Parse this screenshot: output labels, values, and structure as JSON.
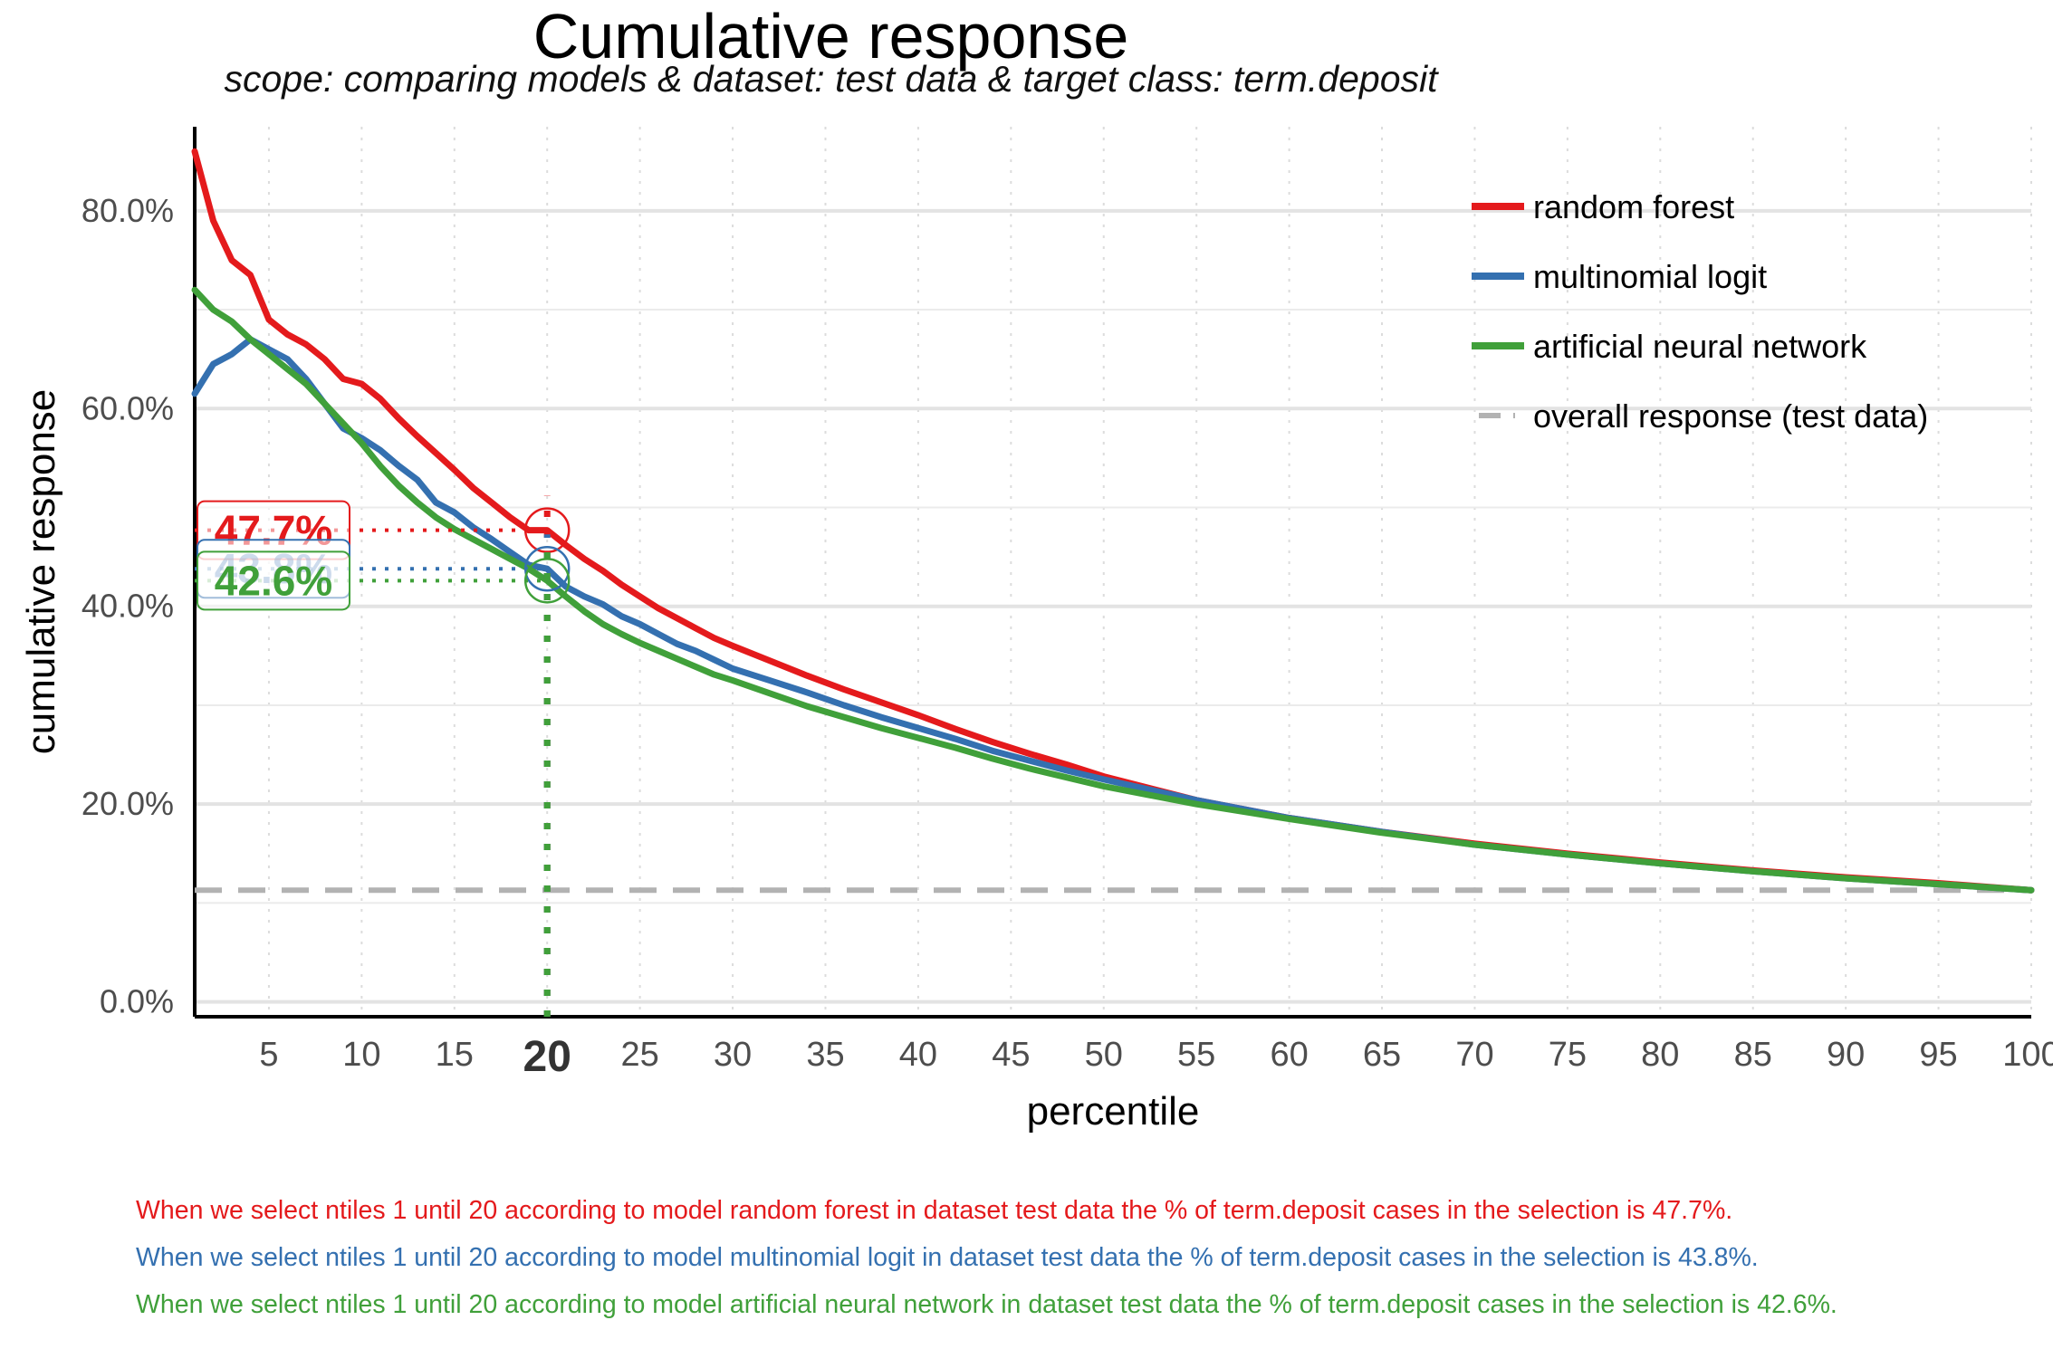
{
  "title": "Cumulative response",
  "subtitle": "scope: comparing models & dataset: test data & target class: term.deposit",
  "chart_data": {
    "type": "line",
    "xlabel": "percentile",
    "ylabel": "cumulative response",
    "xlim": [
      1,
      100
    ],
    "ylim": [
      -1.5,
      88.5
    ],
    "x_ticks": [
      "5",
      "10",
      "15",
      "20",
      "25",
      "30",
      "35",
      "40",
      "45",
      "50",
      "55",
      "60",
      "65",
      "70",
      "75",
      "80",
      "85",
      "90",
      "95",
      "100"
    ],
    "highlight_x_tick": "20",
    "y_ticks": [
      "0.0%",
      "20.0%",
      "40.0%",
      "60.0%",
      "80.0%"
    ],
    "grid": true,
    "legend_position": "top-right",
    "series": [
      {
        "name": "random forest",
        "color": "#E41A1C",
        "x": [
          1,
          2,
          3,
          4,
          5,
          6,
          7,
          8,
          9,
          10,
          11,
          12,
          13,
          14,
          15,
          16,
          17,
          18,
          19,
          20,
          21,
          22,
          23,
          24,
          25,
          26,
          27,
          28,
          29,
          30,
          32,
          34,
          36,
          38,
          40,
          42,
          44,
          46,
          48,
          50,
          55,
          60,
          65,
          70,
          75,
          80,
          85,
          90,
          95,
          100
        ],
        "y": [
          86.0,
          79.0,
          75.0,
          73.5,
          69.0,
          67.5,
          66.5,
          65.0,
          63.0,
          62.5,
          61.0,
          59.0,
          57.2,
          55.5,
          53.8,
          52.0,
          50.5,
          49.0,
          47.7,
          47.7,
          46.2,
          44.8,
          43.6,
          42.2,
          41.0,
          39.8,
          38.8,
          37.8,
          36.8,
          36.0,
          34.5,
          33.0,
          31.6,
          30.3,
          29.0,
          27.6,
          26.3,
          25.1,
          24.0,
          22.8,
          20.4,
          18.6,
          17.2,
          16.0,
          15.0,
          14.1,
          13.3,
          12.6,
          12.0,
          11.3
        ]
      },
      {
        "name": "multinomial logit",
        "color": "#3470B0",
        "x": [
          1,
          2,
          3,
          4,
          5,
          6,
          7,
          8,
          9,
          10,
          11,
          12,
          13,
          14,
          15,
          16,
          17,
          18,
          19,
          20,
          21,
          22,
          23,
          24,
          25,
          26,
          27,
          28,
          29,
          30,
          32,
          34,
          36,
          38,
          40,
          42,
          44,
          46,
          48,
          50,
          55,
          60,
          65,
          70,
          75,
          80,
          85,
          90,
          95,
          100
        ],
        "y": [
          61.5,
          64.5,
          65.5,
          67.0,
          66.0,
          65.0,
          63.0,
          60.5,
          58.0,
          57.0,
          55.8,
          54.2,
          52.8,
          50.5,
          49.5,
          48.0,
          46.8,
          45.5,
          44.2,
          43.8,
          42.0,
          41.0,
          40.2,
          39.0,
          38.2,
          37.2,
          36.2,
          35.5,
          34.6,
          33.7,
          32.5,
          31.3,
          30.0,
          28.8,
          27.7,
          26.6,
          25.4,
          24.4,
          23.4,
          22.5,
          20.4,
          18.6,
          17.2,
          15.9,
          14.9,
          14.0,
          13.2,
          12.5,
          11.9,
          11.3
        ]
      },
      {
        "name": "artificial neural network",
        "color": "#40A03A",
        "x": [
          1,
          2,
          3,
          4,
          5,
          6,
          7,
          8,
          9,
          10,
          11,
          12,
          13,
          14,
          15,
          16,
          17,
          18,
          19,
          20,
          21,
          22,
          23,
          24,
          25,
          26,
          27,
          28,
          29,
          30,
          32,
          34,
          36,
          38,
          40,
          42,
          44,
          46,
          48,
          50,
          55,
          60,
          65,
          70,
          75,
          80,
          85,
          90,
          95,
          100
        ],
        "y": [
          72.0,
          70.0,
          68.8,
          67.0,
          65.5,
          64.0,
          62.5,
          60.5,
          58.5,
          56.5,
          54.2,
          52.2,
          50.5,
          49.0,
          47.8,
          46.8,
          45.8,
          44.8,
          43.8,
          42.6,
          41.0,
          39.5,
          38.2,
          37.2,
          36.3,
          35.5,
          34.7,
          33.9,
          33.1,
          32.5,
          31.2,
          29.9,
          28.8,
          27.7,
          26.7,
          25.7,
          24.6,
          23.6,
          22.7,
          21.8,
          20.0,
          18.5,
          17.1,
          15.9,
          14.9,
          14.0,
          13.2,
          12.5,
          11.9,
          11.3
        ]
      },
      {
        "name": "overall response (test data)",
        "color": "#B2B2B2",
        "dashed": true,
        "x": [
          1,
          100
        ],
        "y": [
          11.3,
          11.3
        ]
      }
    ],
    "annotations": [
      {
        "series": "random forest",
        "x": 20,
        "value": 47.7,
        "label": "47.7%",
        "color": "#E41A1C"
      },
      {
        "series": "multinomial logit",
        "x": 20,
        "value": 43.8,
        "label": "43.8%",
        "color": "#3470B0"
      },
      {
        "series": "artificial neural network",
        "x": 20,
        "value": 42.6,
        "label": "42.6%",
        "color": "#40A03A"
      }
    ]
  },
  "notes": [
    {
      "text": "When we select ntiles 1 until 20 according to model random forest in dataset test data the % of term.deposit cases in the selection is 47.7%.",
      "color": "#E41A1C"
    },
    {
      "text": "When we select ntiles 1 until 20 according to model multinomial logit in dataset test data the % of term.deposit cases in the selection is 43.8%.",
      "color": "#3470B0"
    },
    {
      "text": "When we select ntiles 1 until 20 according to model artificial neural network in dataset test data the % of term.deposit cases in the selection is 42.6%.",
      "color": "#40A03A"
    }
  ]
}
